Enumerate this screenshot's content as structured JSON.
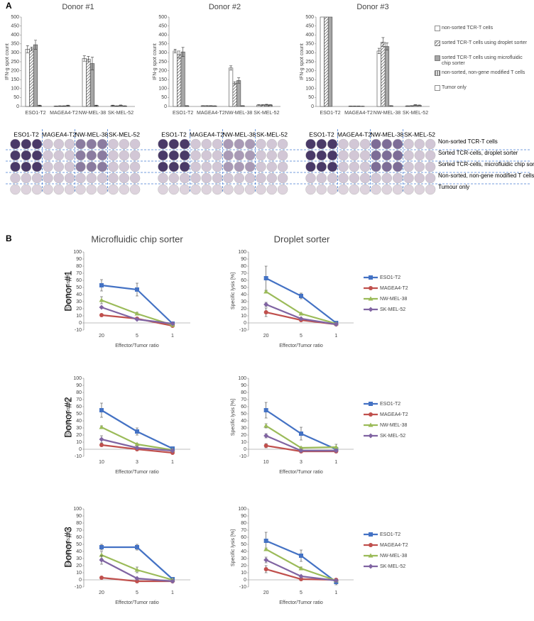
{
  "panel_labels": [
    "A",
    "B"
  ],
  "column_titles": [
    "Microfluidic chip sorter",
    "Droplet sorter"
  ],
  "row_titles": [
    "Donor #1",
    "Donor #2",
    "Donor #3"
  ],
  "wells": {
    "column_headers": [
      [
        "ESO1-T2",
        "MAGEA4-T2",
        "NW-MEL-38",
        "SK-MEL-52"
      ],
      [
        "ESO1-T2",
        "MAGEA4-T2",
        "NW-MEL-38",
        "SK-MEL-52"
      ],
      [
        "ESO1-T2",
        "MAGEA4-T2",
        "NW-MEL-38",
        "SK-MEL-52"
      ]
    ],
    "row_labels": [
      "Non-sorted TCR-T cells",
      "Sorted TCR-cells, droplet sorter",
      "Sorted TCR-cells, microfluidic chip sorter",
      "Non-sorted, non-gene modified T cells",
      "Tumour only"
    ]
  },
  "chart_data": [
    {
      "type": "bar",
      "title": "Donor #1",
      "ylabel": "IFN-g spot count",
      "legend": false,
      "categories": [
        "ESO1-T2",
        "MAGEA4-T2",
        "NW-MEL-38",
        "SK-MEL-52"
      ],
      "ylim": [
        0,
        500
      ],
      "yticks": [
        0,
        50,
        100,
        150,
        200,
        250,
        300,
        350,
        400,
        450,
        500
      ],
      "series": [
        {
          "name": "non-sorted TCR-T cells",
          "color": "#ffffff",
          "pattern": "none",
          "values": [
            320,
            2,
            268,
            5
          ],
          "errors": [
            20,
            1,
            15,
            2
          ]
        },
        {
          "name": "sorted TCR-T cells using droplet sorter",
          "color": "#ffffff",
          "pattern": "diagonal",
          "values": [
            322,
            3,
            265,
            3
          ],
          "errors": [
            10,
            1,
            15,
            1
          ]
        },
        {
          "name": "sorted TCR-T cells using microfluidic chip sorter",
          "color": "#a6a6a6",
          "pattern": "none",
          "values": [
            345,
            3,
            240,
            6
          ],
          "errors": [
            25,
            1,
            35,
            2
          ]
        },
        {
          "name": "non-sorted, non-gene modified T cells",
          "color": "#ffffff",
          "pattern": "vertical",
          "values": [
            5,
            5,
            5,
            3
          ],
          "errors": [
            2,
            2,
            2,
            1
          ]
        },
        {
          "name": "Tumor only",
          "color": "#ffffff",
          "pattern": "none",
          "values": [
            0,
            0,
            0,
            0
          ],
          "errors": [
            0,
            0,
            0,
            0
          ]
        }
      ]
    },
    {
      "type": "bar",
      "title": "Donor #2",
      "ylabel": "IFN-g spot count",
      "legend": false,
      "categories": [
        "ESO1-T2",
        "MAGEA4-T2",
        "NW-MEL-38",
        "SK-MEL-52"
      ],
      "ylim": [
        0,
        500
      ],
      "yticks": [
        0,
        50,
        100,
        150,
        200,
        250,
        300,
        350,
        400,
        450,
        500
      ],
      "series": [
        {
          "name": "non-sorted TCR-T cells",
          "color": "#ffffff",
          "pattern": "none",
          "values": [
            310,
            4,
            215,
            8
          ],
          "errors": [
            10,
            1,
            12,
            2
          ]
        },
        {
          "name": "sorted TCR-T cells using droplet sorter",
          "color": "#ffffff",
          "pattern": "diagonal",
          "values": [
            290,
            4,
            130,
            8
          ],
          "errors": [
            20,
            1,
            8,
            2
          ]
        },
        {
          "name": "sorted TCR-T cells using microfluidic chip sorter",
          "color": "#a6a6a6",
          "pattern": "none",
          "values": [
            305,
            4,
            145,
            10
          ],
          "errors": [
            25,
            1,
            15,
            2
          ]
        },
        {
          "name": "non-sorted, non-gene modified T cells",
          "color": "#ffffff",
          "pattern": "vertical",
          "values": [
            4,
            3,
            4,
            8
          ],
          "errors": [
            1,
            1,
            1,
            2
          ]
        },
        {
          "name": "Tumor only",
          "color": "#ffffff",
          "pattern": "none",
          "values": [
            0,
            0,
            0,
            0
          ],
          "errors": [
            0,
            0,
            0,
            0
          ]
        }
      ]
    },
    {
      "type": "bar",
      "title": "Donor #3",
      "ylabel": "IFN-g spot count",
      "legend": true,
      "categories": [
        "ESO1-T2",
        "MAGEA4-T2",
        "NW-MEL-38",
        "SK-MEL-52"
      ],
      "ylim": [
        0,
        500
      ],
      "yticks": [
        0,
        50,
        100,
        150,
        200,
        250,
        300,
        350,
        400,
        450,
        500
      ],
      "series": [
        {
          "name": "non-sorted TCR-T cells",
          "color": "#ffffff",
          "pattern": "none",
          "values": [
            500,
            2,
            310,
            3
          ],
          "errors": [
            0,
            1,
            15,
            1
          ]
        },
        {
          "name": "sorted TCR-T cells using droplet sorter",
          "color": "#ffffff",
          "pattern": "diagonal",
          "values": [
            500,
            2,
            360,
            4
          ],
          "errors": [
            0,
            1,
            25,
            1
          ]
        },
        {
          "name": "sorted TCR-T cells using microfluidic chip sorter",
          "color": "#a6a6a6",
          "pattern": "none",
          "values": [
            500,
            2,
            335,
            8
          ],
          "errors": [
            0,
            1,
            20,
            2
          ]
        },
        {
          "name": "non-sorted, non-gene modified T cells",
          "color": "#ffffff",
          "pattern": "vertical",
          "values": [
            0,
            1,
            4,
            6
          ],
          "errors": [
            0,
            1,
            1,
            2
          ]
        },
        {
          "name": "Tumor only",
          "color": "#ffffff",
          "pattern": "none",
          "values": [
            0,
            0,
            0,
            0
          ],
          "errors": [
            0,
            0,
            0,
            0
          ]
        }
      ]
    },
    {
      "type": "line",
      "ylabel": "Specific lysis [%]",
      "xlabel": "Effector/Tumor ratio",
      "legend": false,
      "categories": [
        "20",
        "5",
        "1"
      ],
      "ylim": [
        -10,
        100
      ],
      "yticks": [
        -10,
        0,
        10,
        20,
        30,
        40,
        50,
        60,
        70,
        80,
        90,
        100
      ],
      "series": [
        {
          "name": "ESO1-T2",
          "color": "#4472c4",
          "marker": "square",
          "values": [
            53,
            47,
            -1
          ],
          "errors": [
            8,
            9,
            1
          ]
        },
        {
          "name": "MAGEA4-T2",
          "color": "#c0504d",
          "marker": "circle",
          "values": [
            11,
            6,
            -4
          ],
          "errors": [
            1,
            1,
            1
          ]
        },
        {
          "name": "NW-MEL-38",
          "color": "#9bbb59",
          "marker": "triangle",
          "values": [
            32,
            13,
            -3
          ],
          "errors": [
            5,
            2,
            1
          ]
        },
        {
          "name": "SK-MEL-52",
          "color": "#8064a2",
          "marker": "diamond",
          "values": [
            22,
            5,
            -1
          ],
          "errors": [
            1,
            1,
            1
          ]
        }
      ]
    },
    {
      "type": "line",
      "ylabel": "Specific lysis [%]",
      "xlabel": "Effector/Tumor ratio",
      "legend": true,
      "categories": [
        "20",
        "5",
        "1"
      ],
      "ylim": [
        -10,
        100
      ],
      "yticks": [
        -10,
        0,
        10,
        20,
        30,
        40,
        50,
        60,
        70,
        80,
        90,
        100
      ],
      "series": [
        {
          "name": "ESO1-T2",
          "color": "#4472c4",
          "marker": "square",
          "values": [
            63,
            38,
            0
          ],
          "errors": [
            17,
            4,
            1
          ]
        },
        {
          "name": "MAGEA4-T2",
          "color": "#c0504d",
          "marker": "circle",
          "values": [
            15,
            4,
            -2
          ],
          "errors": [
            6,
            1,
            1
          ]
        },
        {
          "name": "NW-MEL-38",
          "color": "#9bbb59",
          "marker": "triangle",
          "values": [
            44,
            13,
            -1
          ],
          "errors": [
            2,
            1,
            1
          ]
        },
        {
          "name": "SK-MEL-52",
          "color": "#8064a2",
          "marker": "diamond",
          "values": [
            26,
            6,
            -2
          ],
          "errors": [
            3,
            1,
            1
          ]
        }
      ]
    },
    {
      "type": "line",
      "ylabel": "Specific lysis [%]",
      "xlabel": "Effector/Tumor ratio",
      "legend": false,
      "categories": [
        "10",
        "3",
        "1"
      ],
      "ylim": [
        -10,
        100
      ],
      "yticks": [
        -10,
        0,
        10,
        20,
        30,
        40,
        50,
        60,
        70,
        80,
        90,
        100
      ],
      "series": [
        {
          "name": "ESO1-T2",
          "color": "#4472c4",
          "marker": "square",
          "values": [
            55,
            25,
            1
          ],
          "errors": [
            10,
            5,
            2
          ]
        },
        {
          "name": "MAGEA4-T2",
          "color": "#c0504d",
          "marker": "circle",
          "values": [
            6,
            0,
            -5
          ],
          "errors": [
            1,
            1,
            1
          ]
        },
        {
          "name": "NW-MEL-38",
          "color": "#9bbb59",
          "marker": "triangle",
          "values": [
            31,
            7,
            -1
          ],
          "errors": [
            2,
            1,
            1
          ]
        },
        {
          "name": "SK-MEL-52",
          "color": "#8064a2",
          "marker": "diamond",
          "values": [
            14,
            2,
            -2
          ],
          "errors": [
            5,
            1,
            1
          ]
        }
      ]
    },
    {
      "type": "line",
      "ylabel": "Specific lysis [%]",
      "xlabel": "Effector/Tumor ratio",
      "legend": true,
      "categories": [
        "10",
        "3",
        "1"
      ],
      "ylim": [
        -10,
        100
      ],
      "yticks": [
        -10,
        0,
        10,
        20,
        30,
        40,
        50,
        60,
        70,
        80,
        90,
        100
      ],
      "series": [
        {
          "name": "ESO1-T2",
          "color": "#4472c4",
          "marker": "square",
          "values": [
            55,
            22,
            0
          ],
          "errors": [
            11,
            9,
            1
          ]
        },
        {
          "name": "MAGEA4-T2",
          "color": "#c0504d",
          "marker": "circle",
          "values": [
            5,
            -3,
            -3
          ],
          "errors": [
            3,
            1,
            1
          ]
        },
        {
          "name": "NW-MEL-38",
          "color": "#9bbb59",
          "marker": "triangle",
          "values": [
            33,
            2,
            3
          ],
          "errors": [
            3,
            1,
            4
          ]
        },
        {
          "name": "SK-MEL-52",
          "color": "#8064a2",
          "marker": "diamond",
          "values": [
            19,
            -2,
            -2
          ],
          "errors": [
            3,
            1,
            1
          ]
        }
      ]
    },
    {
      "type": "line",
      "ylabel": "Specific lysis [%]",
      "xlabel": "Effector/Tumor ratio",
      "legend": false,
      "categories": [
        "20",
        "5",
        "1"
      ],
      "ylim": [
        -10,
        100
      ],
      "yticks": [
        -10,
        0,
        10,
        20,
        30,
        40,
        50,
        60,
        70,
        80,
        90,
        100
      ],
      "series": [
        {
          "name": "ESO1-T2",
          "color": "#4472c4",
          "marker": "square",
          "values": [
            46,
            46,
            1
          ],
          "errors": [
            4,
            4,
            1
          ]
        },
        {
          "name": "MAGEA4-T2",
          "color": "#c0504d",
          "marker": "circle",
          "values": [
            3,
            -2,
            -2
          ],
          "errors": [
            1,
            1,
            1
          ]
        },
        {
          "name": "NW-MEL-38",
          "color": "#9bbb59",
          "marker": "triangle",
          "values": [
            35,
            14,
            0
          ],
          "errors": [
            5,
            4,
            1
          ]
        },
        {
          "name": "SK-MEL-52",
          "color": "#8064a2",
          "marker": "diamond",
          "values": [
            28,
            2,
            -2
          ],
          "errors": [
            6,
            1,
            1
          ]
        }
      ]
    },
    {
      "type": "line",
      "ylabel": "Specific lysis [%]",
      "xlabel": "Effector/Tumor ratio",
      "legend": true,
      "categories": [
        "20",
        "5",
        "1"
      ],
      "ylim": [
        -10,
        100
      ],
      "yticks": [
        -10,
        0,
        10,
        20,
        30,
        40,
        50,
        60,
        70,
        80,
        90,
        100
      ],
      "series": [
        {
          "name": "ESO1-T2",
          "color": "#4472c4",
          "marker": "square",
          "values": [
            55,
            34,
            -3
          ],
          "errors": [
            12,
            8,
            4
          ]
        },
        {
          "name": "MAGEA4-T2",
          "color": "#c0504d",
          "marker": "circle",
          "values": [
            15,
            1,
            0
          ],
          "errors": [
            5,
            2,
            1
          ]
        },
        {
          "name": "NW-MEL-38",
          "color": "#9bbb59",
          "marker": "triangle",
          "values": [
            43,
            16,
            -1
          ],
          "errors": [
            2,
            2,
            1
          ]
        },
        {
          "name": "SK-MEL-52",
          "color": "#8064a2",
          "marker": "diamond",
          "values": [
            28,
            5,
            -1
          ],
          "errors": [
            4,
            1,
            1
          ]
        }
      ]
    }
  ]
}
